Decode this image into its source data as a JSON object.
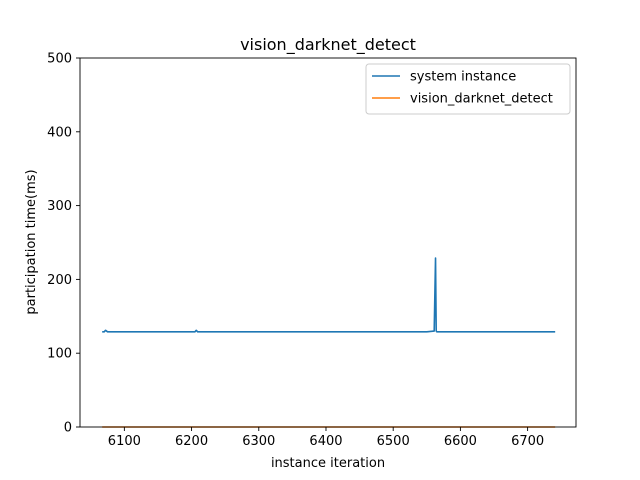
{
  "chart_data": {
    "type": "line",
    "title": "vision_darknet_detect",
    "xlabel": "instance iteration",
    "ylabel": "participation time(ms)",
    "xlim": [
      6034,
      6772
    ],
    "ylim": [
      0,
      500
    ],
    "xticks": [
      6100,
      6200,
      6300,
      6400,
      6500,
      6600,
      6700
    ],
    "yticks": [
      0,
      100,
      200,
      300,
      400,
      500
    ],
    "grid": false,
    "legend_position": "top-right",
    "series": [
      {
        "name": "system instance",
        "color": "#1f77b4",
        "x": [
          6067,
          6070,
          6072,
          6075,
          6100,
          6150,
          6205,
          6207,
          6209,
          6250,
          6300,
          6350,
          6400,
          6450,
          6500,
          6550,
          6561,
          6563,
          6564,
          6565,
          6600,
          6650,
          6700,
          6741
        ],
        "y": [
          129,
          129,
          131,
          129,
          129,
          129,
          129,
          131,
          129,
          129,
          129,
          129,
          129,
          129,
          129,
          129,
          130,
          229,
          130,
          129,
          129,
          129,
          129,
          129
        ]
      },
      {
        "name": "vision_darknet_detect",
        "color": "#ff7f0e",
        "x": [
          6067,
          6741
        ],
        "y": [
          0,
          0
        ]
      }
    ]
  }
}
